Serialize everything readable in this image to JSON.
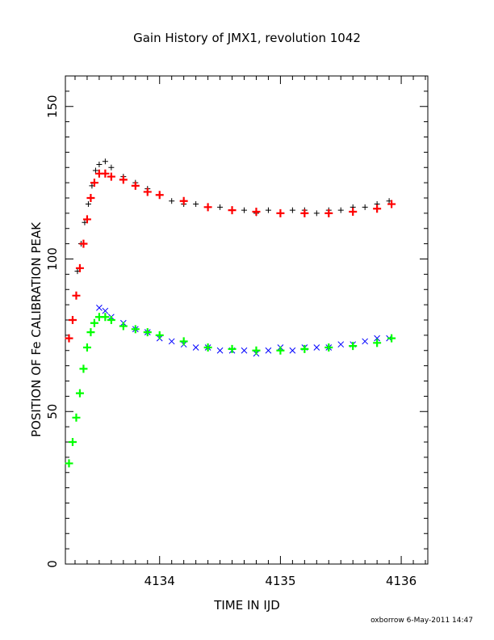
{
  "chart_data": {
    "type": "scatter",
    "title": "Gain History of JMX1, revolution 1042",
    "xlabel": "TIME IN IJD",
    "ylabel": "POSITION OF Fe CALIBRATION PEAK",
    "xlim": [
      4133.22,
      4136.22
    ],
    "ylim": [
      0,
      160
    ],
    "x_ticks": [
      4134,
      4135,
      4136
    ],
    "y_ticks": [
      0,
      50,
      100,
      150
    ],
    "grid": false,
    "series": [
      {
        "kind": "measured",
        "marker": "plus",
        "color": "#000000",
        "x": [
          4133.32,
          4133.35,
          4133.38,
          4133.41,
          4133.44,
          4133.47,
          4133.5,
          4133.55,
          4133.6,
          4133.7,
          4133.8,
          4133.9,
          4134.0,
          4134.1,
          4134.2,
          4134.3,
          4134.4,
          4134.5,
          4134.6,
          4134.7,
          4134.8,
          4134.9,
          4135.0,
          4135.1,
          4135.2,
          4135.3,
          4135.4,
          4135.5,
          4135.6,
          4135.7,
          4135.8,
          4135.9
        ],
        "y": [
          96,
          105,
          112,
          118,
          124,
          129,
          131,
          132,
          130,
          127,
          125,
          123,
          121,
          119,
          118,
          118,
          117,
          117,
          116,
          116,
          115,
          116,
          115,
          116,
          116,
          115,
          116,
          116,
          117,
          117,
          118,
          119
        ]
      },
      {
        "kind": "fit",
        "marker": "plus",
        "color": "#ff0000",
        "x": [
          4133.25,
          4133.28,
          4133.31,
          4133.34,
          4133.37,
          4133.4,
          4133.43,
          4133.46,
          4133.5,
          4133.55,
          4133.6,
          4133.7,
          4133.8,
          4133.9,
          4134.0,
          4134.2,
          4134.4,
          4134.6,
          4134.8,
          4135.0,
          4135.2,
          4135.4,
          4135.6,
          4135.8,
          4135.92
        ],
        "y": [
          74,
          80,
          88,
          97,
          105,
          113,
          120,
          125,
          128,
          128,
          127,
          126,
          124,
          122,
          121,
          119,
          117,
          116,
          115.5,
          115,
          115,
          115,
          115.5,
          116.5,
          118
        ]
      },
      {
        "kind": "measured",
        "marker": "cross",
        "color": "#0000ff",
        "x": [
          4133.5,
          4133.55,
          4133.6,
          4133.7,
          4133.8,
          4133.9,
          4134.0,
          4134.1,
          4134.2,
          4134.3,
          4134.4,
          4134.5,
          4134.6,
          4134.7,
          4134.8,
          4134.9,
          4135.0,
          4135.1,
          4135.2,
          4135.3,
          4135.4,
          4135.5,
          4135.6,
          4135.7,
          4135.8,
          4135.9
        ],
        "y": [
          84,
          83,
          81,
          79,
          77,
          76,
          74,
          73,
          72,
          71,
          71,
          70,
          70,
          70,
          69,
          70,
          71,
          70,
          71,
          71,
          71,
          72,
          72,
          73,
          74,
          74
        ]
      },
      {
        "kind": "fit",
        "marker": "plus",
        "color": "#00ff00",
        "x": [
          4133.25,
          4133.28,
          4133.31,
          4133.34,
          4133.37,
          4133.4,
          4133.43,
          4133.46,
          4133.5,
          4133.55,
          4133.6,
          4133.7,
          4133.8,
          4133.9,
          4134.0,
          4134.2,
          4134.4,
          4134.6,
          4134.8,
          4135.0,
          4135.2,
          4135.4,
          4135.6,
          4135.8,
          4135.92
        ],
        "y": [
          33,
          40,
          48,
          56,
          64,
          71,
          76,
          79,
          81,
          81,
          80,
          78,
          77,
          76,
          75,
          73,
          71,
          70.5,
          70,
          70,
          70.5,
          71,
          71.5,
          72.5,
          74
        ]
      }
    ]
  },
  "footer": {
    "stamp": "oxborrow   6-May-2011 14:47"
  }
}
